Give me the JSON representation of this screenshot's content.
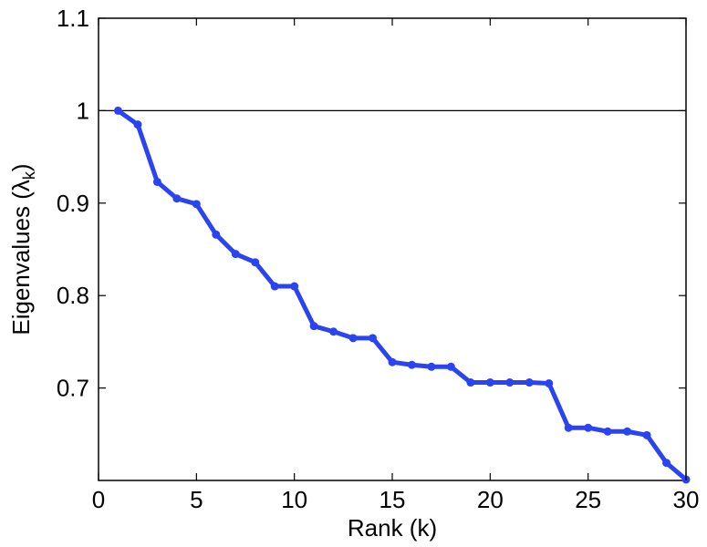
{
  "chart_data": {
    "type": "line",
    "title": "",
    "xlabel": "Rank (k)",
    "ylabel": {
      "prefix": "Eigenvalues (",
      "symbol": "λ",
      "subscript": "k",
      "suffix": ")"
    },
    "xlim": [
      0,
      30
    ],
    "ylim": [
      0.6,
      1.1
    ],
    "xticks": [
      0,
      5,
      10,
      15,
      20,
      25,
      30
    ],
    "yticks": [
      0.7,
      0.8,
      0.9,
      1,
      1.1
    ],
    "xtick_labels": [
      "0",
      "5",
      "10",
      "15",
      "20",
      "25",
      "30"
    ],
    "ytick_labels": [
      "0.7",
      "0.8",
      "0.9",
      "1",
      "1.1"
    ],
    "grid": false,
    "reference_line": {
      "y": 1,
      "color": "#000000"
    },
    "series": [
      {
        "color": "#2a44f2",
        "marker": "circle",
        "x": [
          1,
          2,
          3,
          4,
          5,
          6,
          7,
          8,
          9,
          10,
          11,
          12,
          13,
          14,
          15,
          16,
          17,
          18,
          19,
          20,
          21,
          22,
          23,
          24,
          25,
          26,
          27,
          28,
          29,
          30
        ],
        "y": [
          1.0,
          0.985,
          0.923,
          0.905,
          0.899,
          0.866,
          0.845,
          0.836,
          0.81,
          0.81,
          0.767,
          0.761,
          0.754,
          0.754,
          0.728,
          0.725,
          0.723,
          0.723,
          0.706,
          0.706,
          0.706,
          0.706,
          0.705,
          0.657,
          0.657,
          0.653,
          0.653,
          0.649,
          0.619,
          0.601
        ]
      }
    ]
  }
}
